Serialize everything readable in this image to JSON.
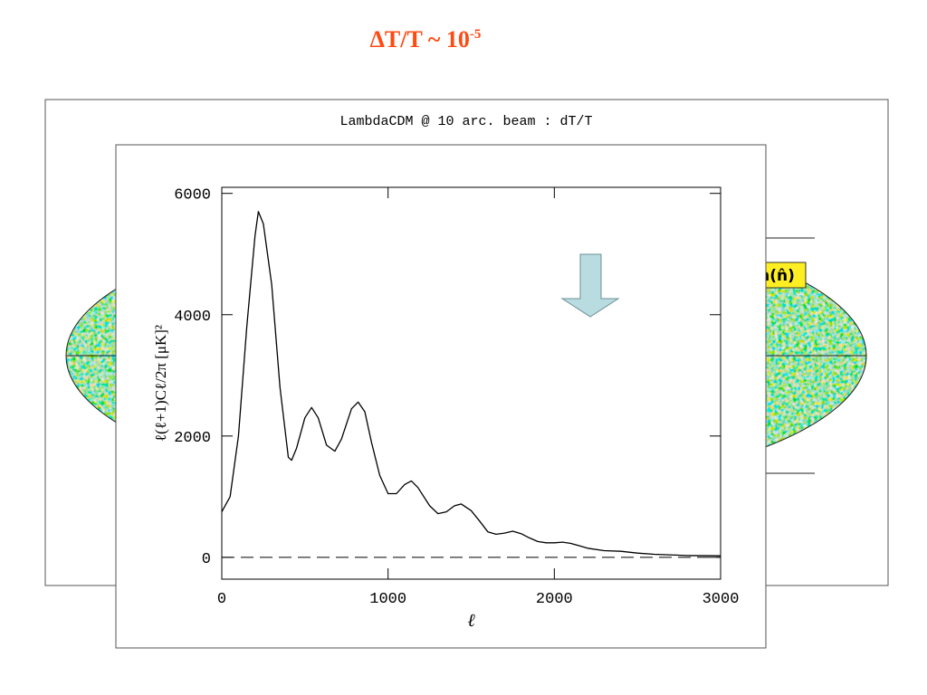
{
  "slide_title": {
    "text": "ΔT/T ~ 10",
    "exponent": "-5"
  },
  "background_map": {
    "title": "LambdaCDM @ 10 arc. beam : dT/T",
    "label": "n(n̂)"
  },
  "chart_data": {
    "type": "line",
    "xlabel": "ℓ",
    "ylabel": "ℓ(ℓ+1)Cℓ/2π  [μK]²",
    "x": [
      0,
      50,
      100,
      150,
      200,
      220,
      250,
      300,
      350,
      400,
      420,
      450,
      500,
      540,
      580,
      630,
      680,
      720,
      780,
      820,
      860,
      900,
      950,
      1000,
      1050,
      1100,
      1140,
      1180,
      1250,
      1300,
      1350,
      1400,
      1440,
      1500,
      1550,
      1600,
      1650,
      1700,
      1750,
      1800,
      1850,
      1900,
      1950,
      2000,
      2050,
      2100,
      2200,
      2300,
      2400,
      2500,
      2600,
      2800,
      3000
    ],
    "values": [
      750,
      1000,
      2000,
      3800,
      5300,
      5700,
      5500,
      4500,
      2800,
      1650,
      1600,
      1800,
      2300,
      2470,
      2300,
      1850,
      1750,
      1950,
      2450,
      2560,
      2400,
      1900,
      1350,
      1050,
      1050,
      1200,
      1260,
      1150,
      850,
      720,
      750,
      850,
      880,
      770,
      600,
      420,
      380,
      400,
      430,
      390,
      320,
      260,
      240,
      240,
      250,
      230,
      150,
      110,
      100,
      70,
      50,
      30,
      25
    ],
    "color": "#000000",
    "xlim": [
      0,
      3000
    ],
    "xticks": [
      0,
      1000,
      2000,
      3000
    ],
    "ylim": [
      -360,
      6100
    ],
    "yticks": [
      0,
      2000,
      4000,
      6000
    ]
  }
}
